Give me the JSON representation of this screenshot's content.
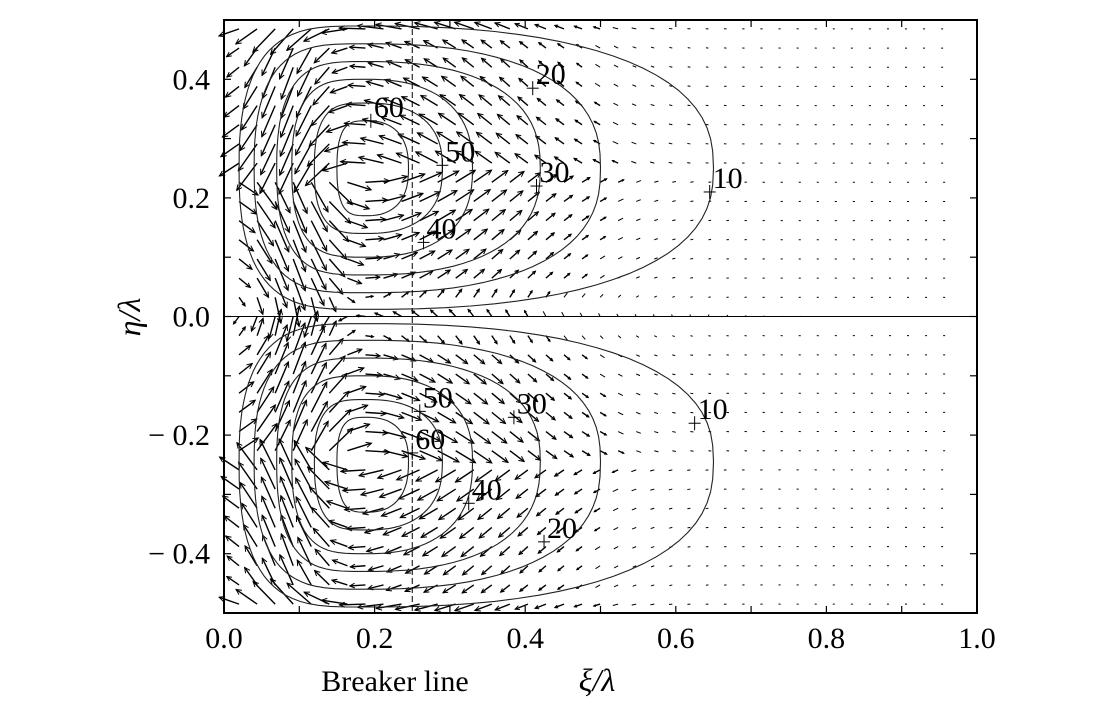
{
  "chart_data": {
    "type": "contour_vector",
    "xlabel": "ξ/λ",
    "ylabel": "η/λ",
    "xlim": [
      0.0,
      1.0
    ],
    "ylim": [
      -0.5,
      0.5
    ],
    "x_ticks": [
      {
        "value": 0.0,
        "label": "0.0"
      },
      {
        "value": 0.2,
        "label": "0.2"
      },
      {
        "value": 0.4,
        "label": "0.4"
      },
      {
        "value": 0.6,
        "label": "0.6"
      },
      {
        "value": 0.8,
        "label": "0.8"
      },
      {
        "value": 1.0,
        "label": "1.0"
      }
    ],
    "y_ticks": [
      {
        "value": 0.4,
        "label": "0.4"
      },
      {
        "value": 0.2,
        "label": "0.2"
      },
      {
        "value": 0.0,
        "label": "0.0"
      },
      {
        "value": -0.2,
        "label": "− 0.2"
      },
      {
        "value": -0.4,
        "label": "− 0.4"
      }
    ],
    "breaker_line": {
      "x": 0.25,
      "label": "Breaker line"
    },
    "centerline_y": 0.0,
    "gyres": [
      {
        "center": {
          "x": 0.19,
          "y": 0.25
        },
        "contours": [
          {
            "level": 10,
            "x_min": 0.02,
            "x_max": 0.65,
            "y_min": 0.012,
            "y_max": 0.49,
            "label": "10",
            "label_at": {
              "x": 0.645,
              "y": 0.21
            }
          },
          {
            "level": 20,
            "x_min": 0.04,
            "x_max": 0.5,
            "y_min": 0.04,
            "y_max": 0.46,
            "label": "20",
            "label_at": {
              "x": 0.41,
              "y": 0.385
            }
          },
          {
            "level": 30,
            "x_min": 0.07,
            "x_max": 0.42,
            "y_min": 0.07,
            "y_max": 0.43,
            "label": "30",
            "label_at": {
              "x": 0.415,
              "y": 0.22
            }
          },
          {
            "level": 40,
            "x_min": 0.09,
            "x_max": 0.33,
            "y_min": 0.1,
            "y_max": 0.4,
            "label": "40",
            "label_at": {
              "x": 0.265,
              "y": 0.125
            }
          },
          {
            "level": 50,
            "x_min": 0.12,
            "x_max": 0.29,
            "y_min": 0.14,
            "y_max": 0.36,
            "label": "50",
            "label_at": {
              "x": 0.29,
              "y": 0.255
            }
          },
          {
            "level": 60,
            "x_min": 0.15,
            "x_max": 0.245,
            "y_min": 0.17,
            "y_max": 0.33,
            "label": "60",
            "label_at": {
              "x": 0.195,
              "y": 0.33
            }
          }
        ]
      },
      {
        "center": {
          "x": 0.19,
          "y": -0.245
        },
        "contours": [
          {
            "level": 10,
            "x_min": 0.02,
            "x_max": 0.65,
            "y_min": -0.49,
            "y_max": -0.012,
            "label": "10",
            "label_at": {
              "x": 0.625,
              "y": -0.18
            }
          },
          {
            "level": 20,
            "x_min": 0.04,
            "x_max": 0.5,
            "y_min": -0.46,
            "y_max": -0.04,
            "label": "20",
            "label_at": {
              "x": 0.425,
              "y": -0.38
            }
          },
          {
            "level": 30,
            "x_min": 0.07,
            "x_max": 0.42,
            "y_min": -0.43,
            "y_max": -0.07,
            "label": "30",
            "label_at": {
              "x": 0.385,
              "y": -0.17
            }
          },
          {
            "level": 40,
            "x_min": 0.09,
            "x_max": 0.33,
            "y_min": -0.4,
            "y_max": -0.1,
            "label": "40",
            "label_at": {
              "x": 0.325,
              "y": -0.315
            }
          },
          {
            "level": 50,
            "x_min": 0.12,
            "x_max": 0.29,
            "y_min": -0.36,
            "y_max": -0.14,
            "label": "50",
            "label_at": {
              "x": 0.26,
              "y": -0.16
            }
          },
          {
            "level": 60,
            "x_min": 0.15,
            "x_max": 0.245,
            "y_min": -0.33,
            "y_max": -0.17,
            "label": "60",
            "label_at": {
              "x": 0.25,
              "y": -0.23
            }
          }
        ]
      }
    ],
    "vector_field": {
      "nx": 40,
      "ny": 31,
      "description_free": true
    }
  }
}
